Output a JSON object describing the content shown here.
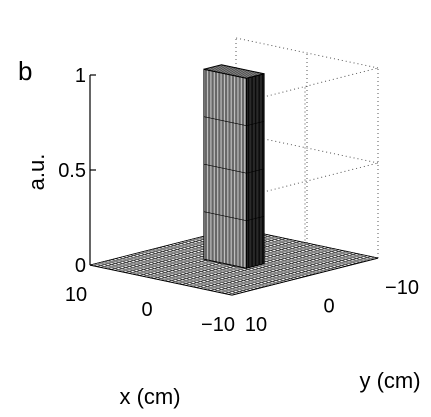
{
  "panel_label": "b",
  "chart_data": {
    "type": "surface",
    "title": "",
    "xlabel": "x (cm)",
    "ylabel": "y (cm)",
    "zlabel": "a.u.",
    "xlim": [
      -10,
      10
    ],
    "ylim": [
      -10,
      10
    ],
    "zlim": [
      0,
      1
    ],
    "x_ticks": [
      "10",
      "0",
      "−10"
    ],
    "y_ticks": [
      "−10",
      "0",
      "10"
    ],
    "z_ticks": [
      "0",
      "0.5",
      "1"
    ],
    "grid": true,
    "surface": {
      "shape": "flat-top rectangular plateau",
      "x_extent": [
        -3,
        3
      ],
      "y_extent": [
        -1.2,
        1.2
      ],
      "height": 1.0,
      "base": 0
    }
  }
}
